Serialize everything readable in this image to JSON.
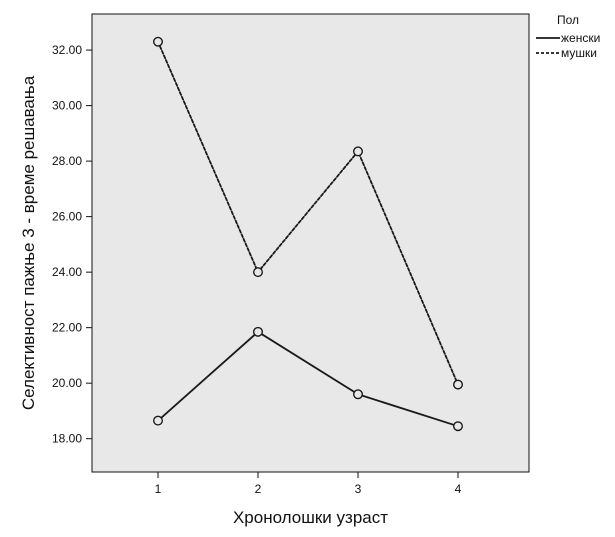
{
  "chart_data": {
    "type": "line",
    "title": "",
    "xlabel": "Хронолошки узраст",
    "ylabel": "Селективност пажње 3 - време решавања",
    "categories": [
      "1",
      "2",
      "3",
      "4"
    ],
    "y_ticks": [
      "18.00",
      "20.00",
      "22.00",
      "24.00",
      "26.00",
      "28.00",
      "30.00",
      "32.00"
    ],
    "ylim": [
      16.8,
      33.3
    ],
    "grid": false,
    "legend": {
      "title": "Пол",
      "position": "top-right outside plot"
    },
    "series": [
      {
        "name": "женски",
        "line_style": "solid",
        "color": "#1a1a1a",
        "values": [
          18.65,
          21.85,
          19.6,
          18.45
        ]
      },
      {
        "name": "мушки",
        "line_style": "dashed",
        "color": "#1a1a1a",
        "values": [
          32.3,
          24.0,
          28.35,
          19.95
        ]
      }
    ],
    "colors": {
      "plot_background": "#e8e8e8",
      "axis": "#111111",
      "marker_fill": "#e8e8e8"
    }
  }
}
